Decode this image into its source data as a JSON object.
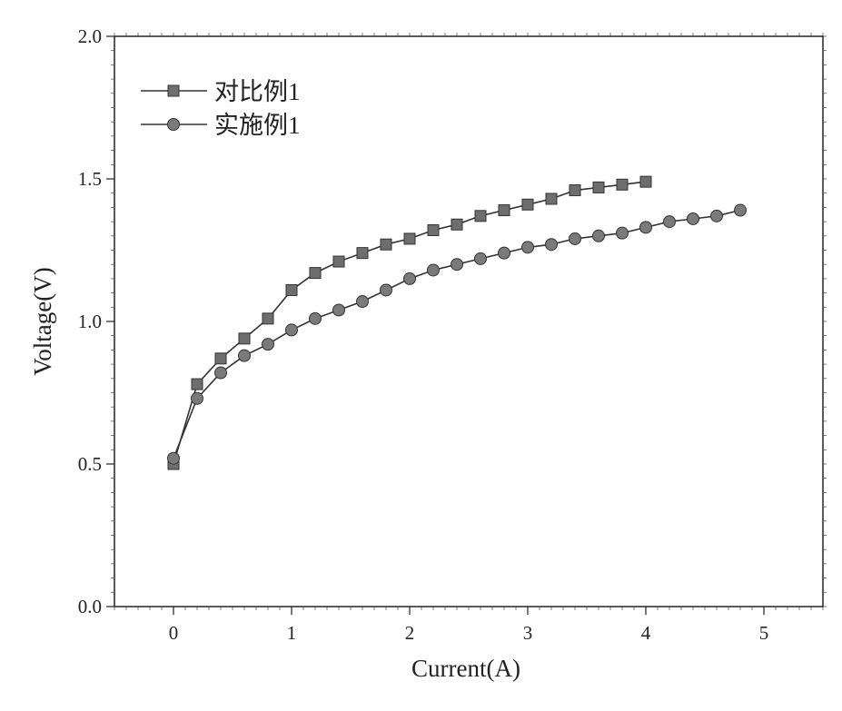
{
  "chart_data": {
    "type": "line",
    "title": "",
    "xlabel": "Current(A)",
    "ylabel": "Voltage(V)",
    "xlim": [
      -0.5,
      5.5
    ],
    "ylim": [
      0.0,
      2.0
    ],
    "xticks": [
      0,
      1,
      2,
      3,
      4,
      5
    ],
    "xtick_labels": [
      "0",
      "1",
      "2",
      "3",
      "4",
      "5"
    ],
    "yticks": [
      0.0,
      0.5,
      1.0,
      1.5,
      2.0
    ],
    "ytick_labels": [
      "0.0",
      "0.5",
      "1.0",
      "1.5",
      "2.0"
    ],
    "grid": false,
    "legend_position": "top-left",
    "series": [
      {
        "name": "对比例1",
        "marker": "square",
        "color": "#333333",
        "marker_color": "#6e6e6e",
        "x": [
          0,
          0.2,
          0.4,
          0.6,
          0.8,
          1.0,
          1.2,
          1.4,
          1.6,
          1.8,
          2.0,
          2.2,
          2.4,
          2.6,
          2.8,
          3.0,
          3.2,
          3.4,
          3.6,
          3.8,
          4.0
        ],
        "y": [
          0.5,
          0.78,
          0.87,
          0.94,
          1.01,
          1.11,
          1.17,
          1.21,
          1.24,
          1.27,
          1.29,
          1.32,
          1.34,
          1.37,
          1.39,
          1.41,
          1.43,
          1.46,
          1.47,
          1.48,
          1.49
        ]
      },
      {
        "name": "实施例1",
        "marker": "circle",
        "color": "#333333",
        "marker_color": "#7a7a7a",
        "x": [
          0,
          0.2,
          0.4,
          0.6,
          0.8,
          1.0,
          1.2,
          1.4,
          1.6,
          1.8,
          2.0,
          2.2,
          2.4,
          2.6,
          2.8,
          3.0,
          3.2,
          3.4,
          3.6,
          3.8,
          4.0,
          4.2,
          4.4,
          4.6,
          4.8
        ],
        "y": [
          0.52,
          0.73,
          0.82,
          0.88,
          0.92,
          0.97,
          1.01,
          1.04,
          1.07,
          1.11,
          1.15,
          1.18,
          1.2,
          1.22,
          1.24,
          1.26,
          1.27,
          1.29,
          1.3,
          1.31,
          1.33,
          1.35,
          1.36,
          1.37,
          1.39
        ]
      }
    ]
  }
}
